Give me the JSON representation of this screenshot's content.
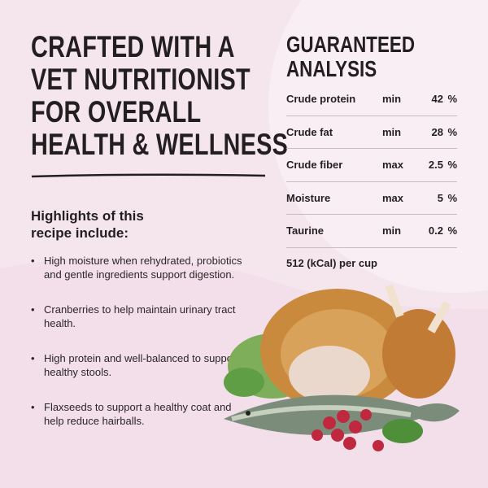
{
  "headline": {
    "lines": [
      "CRAFTED WITH A",
      "VET NUTRITIONIST",
      "FOR OVERALL",
      "HEALTH & WELLNESS"
    ]
  },
  "highlights": {
    "heading_lines": [
      "Highlights of this",
      "recipe include:"
    ],
    "items": [
      "High moisture when rehydrated, probiotics and gentle ingredients support digestion.",
      "Cranberries to help maintain urinary tract health.",
      "High protein and well-balanced to support healthy stools.",
      "Flaxseeds to support a healthy coat and help reduce hairballs."
    ]
  },
  "analysis": {
    "title_lines": [
      "GUARANTEED",
      "ANALYSIS"
    ],
    "rows": [
      {
        "name": "Crude protein",
        "qual": "min",
        "value": "42",
        "unit": "%"
      },
      {
        "name": "Crude fat",
        "qual": "min",
        "value": "28",
        "unit": "%"
      },
      {
        "name": "Crude fiber",
        "qual": "max",
        "value": "2.5",
        "unit": "%"
      },
      {
        "name": "Moisture",
        "qual": "max",
        "value": "5",
        "unit": "%"
      },
      {
        "name": "Taurine",
        "qual": "min",
        "value": "0.2",
        "unit": "%"
      }
    ],
    "calories": "512 (kCal) per cup"
  },
  "colors": {
    "background": "#f5e6ee",
    "text": "#231f20",
    "blob": "#efd6e2"
  }
}
